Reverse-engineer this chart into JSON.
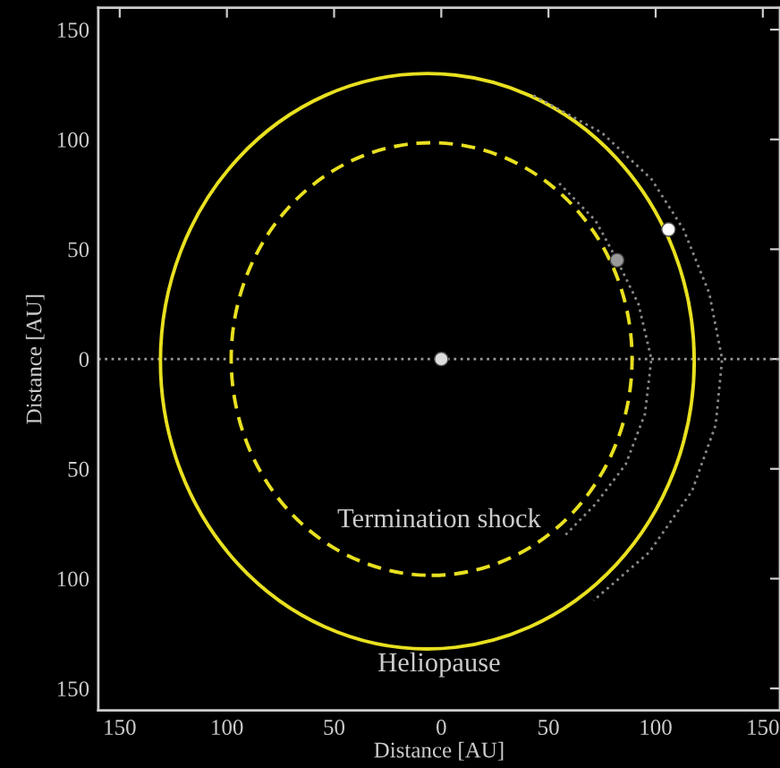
{
  "chart_data": {
    "type": "line",
    "xlabel": "Distance [AU]",
    "ylabel": "Distance [AU]",
    "xlim": [
      -160,
      158
    ],
    "ylim": [
      -160,
      160
    ],
    "xticks": [
      {
        "value": -150,
        "label": "150"
      },
      {
        "value": -100,
        "label": "100"
      },
      {
        "value": -50,
        "label": "50"
      },
      0,
      50,
      100,
      150
    ],
    "yticks": [
      {
        "value": -150,
        "label": "150"
      },
      {
        "value": -100,
        "label": "100"
      },
      {
        "value": -50,
        "label": "50"
      },
      0,
      50,
      100,
      150
    ],
    "grid": false,
    "legend": false,
    "ref_lines": [
      {
        "axis": "y",
        "value": 0,
        "color": "#9a9a9a",
        "line_style": "dotted"
      }
    ],
    "annotations": [
      "Termination shock",
      "Heliopause"
    ],
    "series": [
      {
        "color": "#8a8a8a",
        "line_style": "dotted",
        "x": [
          43,
          75,
          98,
          113,
          125,
          131,
          128,
          117,
          97,
          71
        ],
        "values": [
          120,
          103,
          82,
          59,
          30,
          0,
          -30,
          -60,
          -88,
          -110
        ]
      },
      {
        "color": "#8a8a8a",
        "line_style": "dotted",
        "x": [
          55,
          72,
          82,
          92,
          98,
          95,
          86,
          72,
          58
        ],
        "values": [
          80,
          63,
          45,
          25,
          0,
          -25,
          -48,
          -66,
          -80
        ]
      },
      {
        "type": "scatter",
        "color": "#ffffff",
        "marker": "circle",
        "x": [
          106
        ],
        "values": [
          59
        ]
      },
      {
        "type": "scatter",
        "color": "#9a9a9a",
        "marker": "circle",
        "x": [
          82
        ],
        "values": [
          45
        ]
      },
      {
        "type": "scatter",
        "color": "#dddddd",
        "marker": "circle",
        "x": [
          0
        ],
        "values": [
          0
        ]
      }
    ]
  }
}
